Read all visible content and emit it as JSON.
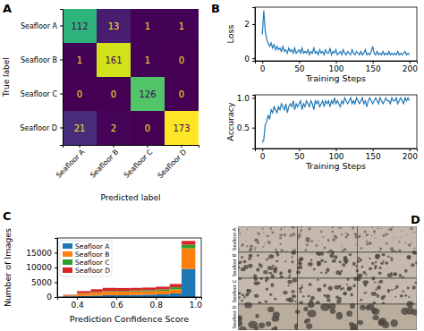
{
  "chart_data": [
    {
      "type": "heatmap",
      "title": "A",
      "xlabel": "Predicted label",
      "ylabel": "True label",
      "x_labels": [
        "Seafloor A",
        "Seafloor B",
        "Seafloor C",
        "Seafloor D"
      ],
      "y_labels": [
        "Seafloor A",
        "Seafloor B",
        "Seafloor C",
        "Seafloor D"
      ],
      "cells": [
        [
          112,
          13,
          1,
          1
        ],
        [
          1,
          161,
          1,
          0
        ],
        [
          0,
          0,
          126,
          0
        ],
        [
          21,
          2,
          0,
          173
        ]
      ],
      "data_labels": true
    },
    {
      "type": "line",
      "title": "B",
      "xlabel": "Training Steps",
      "ylabel": "Loss",
      "color": "#1f77b4",
      "x": [
        0,
        2,
        4,
        6,
        8,
        10,
        12,
        14,
        16,
        18,
        20,
        22,
        24,
        26,
        28,
        30,
        32,
        34,
        36,
        38,
        40,
        42,
        44,
        46,
        48,
        50,
        52,
        54,
        56,
        58,
        60,
        62,
        64,
        66,
        68,
        70,
        72,
        74,
        76,
        78,
        80,
        82,
        84,
        86,
        88,
        90,
        92,
        94,
        96,
        98,
        100,
        102,
        104,
        106,
        108,
        110,
        112,
        114,
        116,
        118,
        120,
        122,
        124,
        126,
        128,
        130,
        132,
        134,
        136,
        138,
        140,
        142,
        144,
        146,
        148,
        150,
        152,
        154,
        156,
        158,
        160,
        162,
        164,
        166,
        168,
        170,
        172,
        174,
        176,
        178,
        180,
        182,
        184,
        186,
        188,
        190,
        192,
        194,
        196,
        198,
        200
      ],
      "values": [
        1.4,
        2.8,
        1.6,
        1.1,
        0.9,
        0.7,
        0.9,
        0.6,
        0.8,
        0.5,
        0.7,
        0.5,
        0.6,
        0.4,
        0.7,
        0.4,
        0.5,
        0.3,
        0.6,
        0.4,
        0.5,
        0.3,
        0.6,
        0.3,
        0.4,
        0.5,
        0.3,
        0.6,
        0.3,
        0.4,
        0.3,
        0.5,
        0.2,
        0.4,
        0.3,
        0.6,
        0.3,
        0.4,
        0.2,
        0.5,
        0.3,
        0.4,
        0.2,
        0.5,
        0.3,
        0.3,
        0.6,
        0.2,
        0.4,
        0.3,
        0.5,
        0.2,
        0.3,
        0.4,
        0.2,
        0.5,
        0.3,
        0.2,
        0.4,
        0.3,
        0.2,
        0.5,
        0.3,
        0.2,
        0.4,
        0.3,
        0.2,
        0.4,
        0.2,
        0.3,
        0.5,
        0.2,
        0.3,
        0.2,
        0.4,
        0.7,
        0.3,
        0.2,
        0.4,
        0.2,
        0.3,
        0.2,
        0.4,
        0.2,
        0.3,
        0.2,
        0.4,
        0.2,
        0.3,
        0.2,
        0.3,
        0.2,
        0.4,
        0.2,
        0.3,
        0.2,
        0.3,
        0.4,
        0.2,
        0.3,
        0.2
      ],
      "xlim": [
        -10,
        210
      ],
      "xticks": [
        0,
        50,
        100,
        150,
        200
      ],
      "ylim": [
        -0.15,
        3.0
      ],
      "yticks": [
        0,
        2
      ]
    },
    {
      "type": "line",
      "xlabel": "Training Steps",
      "ylabel": "Accuracy",
      "color": "#1f77b4",
      "x": [
        0,
        2,
        4,
        6,
        8,
        10,
        12,
        14,
        16,
        18,
        20,
        22,
        24,
        26,
        28,
        30,
        32,
        34,
        36,
        38,
        40,
        42,
        44,
        46,
        48,
        50,
        52,
        54,
        56,
        58,
        60,
        62,
        64,
        66,
        68,
        70,
        72,
        74,
        76,
        78,
        80,
        82,
        84,
        86,
        88,
        90,
        92,
        94,
        96,
        98,
        100,
        102,
        104,
        106,
        108,
        110,
        112,
        114,
        116,
        118,
        120,
        122,
        124,
        126,
        128,
        130,
        132,
        134,
        136,
        138,
        140,
        142,
        144,
        146,
        148,
        150,
        152,
        154,
        156,
        158,
        160,
        162,
        164,
        166,
        168,
        170,
        172,
        174,
        176,
        178,
        180,
        182,
        184,
        186,
        188,
        190,
        192,
        194,
        196,
        198,
        200
      ],
      "values": [
        0.25,
        0.3,
        0.55,
        0.6,
        0.7,
        0.65,
        0.8,
        0.75,
        0.85,
        0.8,
        0.75,
        0.85,
        0.8,
        0.9,
        0.85,
        0.8,
        0.9,
        0.75,
        0.85,
        0.9,
        0.85,
        0.95,
        0.8,
        0.9,
        0.85,
        0.9,
        0.95,
        0.8,
        0.9,
        0.85,
        0.95,
        0.9,
        0.85,
        0.95,
        0.9,
        0.8,
        0.95,
        0.9,
        0.95,
        0.85,
        0.9,
        0.95,
        0.85,
        0.95,
        0.9,
        0.95,
        0.85,
        0.95,
        0.9,
        1.0,
        0.9,
        0.95,
        0.9,
        0.85,
        0.95,
        0.9,
        1.0,
        0.95,
        0.9,
        0.95,
        1.0,
        0.9,
        0.95,
        0.9,
        1.0,
        0.95,
        0.9,
        0.95,
        1.0,
        0.9,
        0.95,
        0.85,
        0.95,
        1.0,
        0.95,
        0.9,
        0.95,
        1.0,
        0.95,
        0.9,
        1.0,
        0.95,
        0.9,
        0.95,
        1.0,
        0.95,
        0.95,
        0.9,
        1.0,
        0.95,
        0.95,
        1.0,
        0.9,
        0.95,
        1.0,
        0.95,
        0.9,
        1.0,
        0.95,
        1.0,
        0.95
      ],
      "xlim": [
        -10,
        210
      ],
      "xticks": [
        0,
        50,
        100,
        150,
        200
      ],
      "ylim": [
        0.15,
        1.05
      ],
      "yticks": [
        0.5,
        {
          "value": 1,
          "label": "1.0"
        }
      ]
    },
    {
      "type": "histogram",
      "title": "C",
      "xlabel": "Prediction Confidence Score",
      "ylabel": "Number of Images",
      "bins": [
        0.33,
        0.4,
        0.47,
        0.53,
        0.6,
        0.67,
        0.73,
        0.8,
        0.87,
        0.93,
        1.0
      ],
      "series": [
        {
          "name": "Seafloor A",
          "color": "#1f77b4",
          "values": [
            200,
            400,
            500,
            600,
            600,
            700,
            800,
            900,
            1200,
            9500
          ]
        },
        {
          "name": "Seafloor B",
          "color": "#ff7f0e",
          "values": [
            300,
            800,
            1000,
            1200,
            1200,
            1200,
            1100,
            1200,
            1400,
            7000
          ]
        },
        {
          "name": "Seafloor C",
          "color": "#2ca02c",
          "values": [
            50,
            100,
            150,
            200,
            250,
            300,
            400,
            500,
            700,
            1200
          ]
        },
        {
          "name": "Seafloor D",
          "color": "#d62728",
          "values": [
            200,
            700,
            1000,
            1100,
            1000,
            900,
            900,
            900,
            1100,
            1300
          ]
        }
      ],
      "stacked": true,
      "legend": "upper left",
      "xlim": [
        0.3,
        1.03
      ],
      "xticks": [
        0.4,
        0.6,
        0.8,
        {
          "value": 1,
          "label": "1.0"
        }
      ],
      "ylim": [
        0,
        20000
      ],
      "yticks": [
        0,
        5000,
        10000,
        15000
      ]
    },
    {
      "type": "image_grid",
      "title": "D",
      "row_labels": [
        "Seafloor A",
        "Seafloor B",
        "Seafloor C",
        "Seafloor D"
      ]
    }
  ]
}
